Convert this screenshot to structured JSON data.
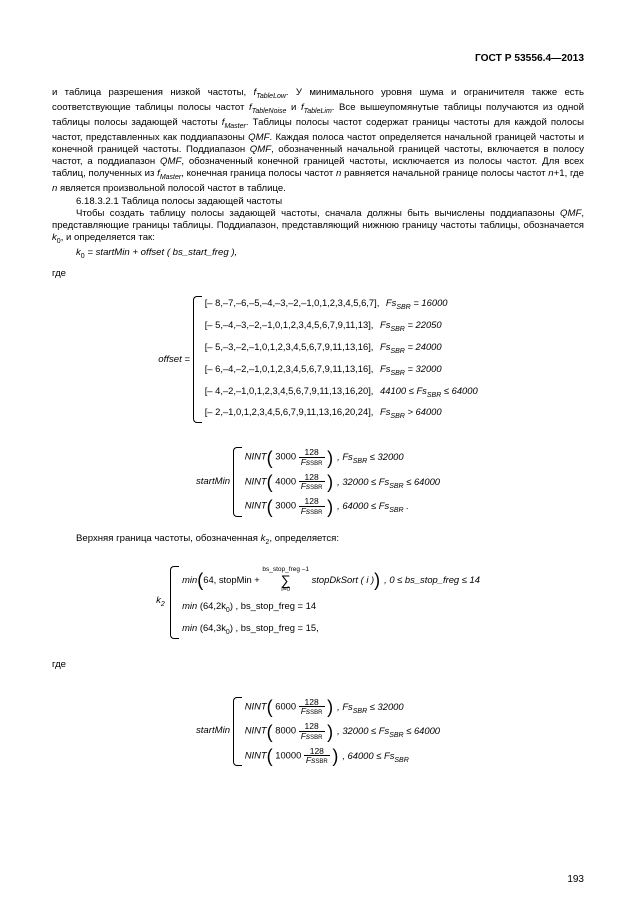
{
  "header": "ГОСТ Р 53556.4—2013",
  "pagenum": "193",
  "para1_a": "и таблица разрешения низкой частоты, ",
  "para1_b": ". У минимального уровня шума и ограничителя также есть соответствующие таблицы полосы частот ",
  "para1_c": " и ",
  "para1_d": ". Все вышеупомянутые таблицы получаются из одной таблицы полосы задающей частоты ",
  "para1_e": ". Таблицы полосы частот содержат границы частоты для каждой полосы частот, представленных как поддиапазоны ",
  "para1_f": ". Каждая полоса частот определяется начальной границей частоты и конечной границей частоты. Поддиапазон ",
  "para1_g": ", обозначенный начальной границей частоты, включается в полосу частот, а поддиапазон ",
  "para1_h": ", обозначенный конечной границей частоты, исключается из полосы частот. Для всех таблиц, полученных из ",
  "para1_i": ", конечная граница полосы частот ",
  "para1_j": " равняется начальной границе полосы частот ",
  "para1_k": "+1, где ",
  "para1_l": " является произвольной полосой частот в таблице.",
  "f_TableLow": "f",
  "f_TableLow_sub": "TableLow",
  "f_TableNoise_sub": "TableNoise",
  "f_TableLim_sub": "TableLim",
  "f_Master_sub": "Master",
  "QMF": "QMF",
  "n_var": "n",
  "sec_num": "6.18.3.2.1 Таблица полосы задающей частоты",
  "para2_a": "Чтобы создать таблицу полосы задающей частоты, сначала должны быть вычислены поддиапазоны ",
  "para2_b": ", представляющие границы таблицы. Поддиапазон, представляющий нижнюю границу частоты таблицы, обозначается ",
  "para2_c": ", и определяется так:",
  "k0": "k",
  "k0_sub": "0",
  "k2_sub": "2",
  "eq0": "  =  startMin  +  offset ( bs_start_freg ),",
  "where": "где",
  "offset_label": "offset  = ",
  "offset_rows": [
    {
      "arr": "[– 8,–7,–6,–5,–4,–3,–2,–1,0,1,2,3,4,5,6,7],",
      "cond": "Fs",
      "op": " = 16000"
    },
    {
      "arr": "[– 5,–4,–3,–2,–1,0,1,2,3,4,5,6,7,9,11,13],",
      "cond": "Fs",
      "op": " = 22050"
    },
    {
      "arr": "[– 5,–3,–2,–1,0,1,2,3,4,5,6,7,9,11,13,16],",
      "cond": "Fs",
      "op": " = 24000"
    },
    {
      "arr": "[– 6,–4,–2,–1,0,1,2,3,4,5,6,7,9,11,13,16],",
      "cond": "Fs",
      "op": " = 32000"
    },
    {
      "arr": "[– 4,–2,–1,0,1,2,3,4,5,6,7,9,11,13,16,20],",
      "cond": "",
      "op": "44100 ≤ Fs"
    },
    {
      "arr": "[– 2,–1,0,1,2,3,4,5,6,7,9,11,13,16,20,24],",
      "cond": "Fs",
      "op": " > 64000"
    }
  ],
  "sbr_sub": "SBR",
  "le64": " ≤ 64000",
  "startMin_label": "startMin ",
  "nint_rows1": [
    {
      "num": "3000",
      "cond": ", Fs",
      "tail": " ≤ 32000"
    },
    {
      "num": "4000",
      "cond": ", 32000 ≤ Fs",
      "tail": " ≤ 64000"
    },
    {
      "num": "3000",
      "cond": ", 64000 ≤ Fs",
      "tail": " ."
    }
  ],
  "para3": "Верхняя граница частоты, обозначенная ",
  "para3b": ", определяется:",
  "k2_rows": [
    {
      "txt": "min",
      "arg": "64, stopMin +",
      "sum_top": "bs_stop_freg –1",
      "sum_bot": "i=0",
      "after": " stopDkSort ( i )",
      "cond": ", 0 ≤ bs_stop_freg ≤ 14"
    },
    {
      "txt": "min",
      "arg": "(64,2k",
      "sub": "0",
      "after": ") ,  bs_stop_freg  = 14",
      "cond": ""
    },
    {
      "txt": "min",
      "arg": "(64,3k",
      "sub": "0",
      "after": ") ,  bs_stop_freg  = 15,",
      "cond": ""
    }
  ],
  "nint_rows2": [
    {
      "num": "6000",
      "cond": ", Fs",
      "tail": " ≤ 32000"
    },
    {
      "num": "8000",
      "cond": ", 32000 ≤ Fs",
      "tail": " ≤ 64000"
    },
    {
      "num": "10000",
      "cond": ", 64000 ≤ Fs",
      "tail": ""
    }
  ],
  "frac_top": "128",
  "frac_bot": "Fs"
}
